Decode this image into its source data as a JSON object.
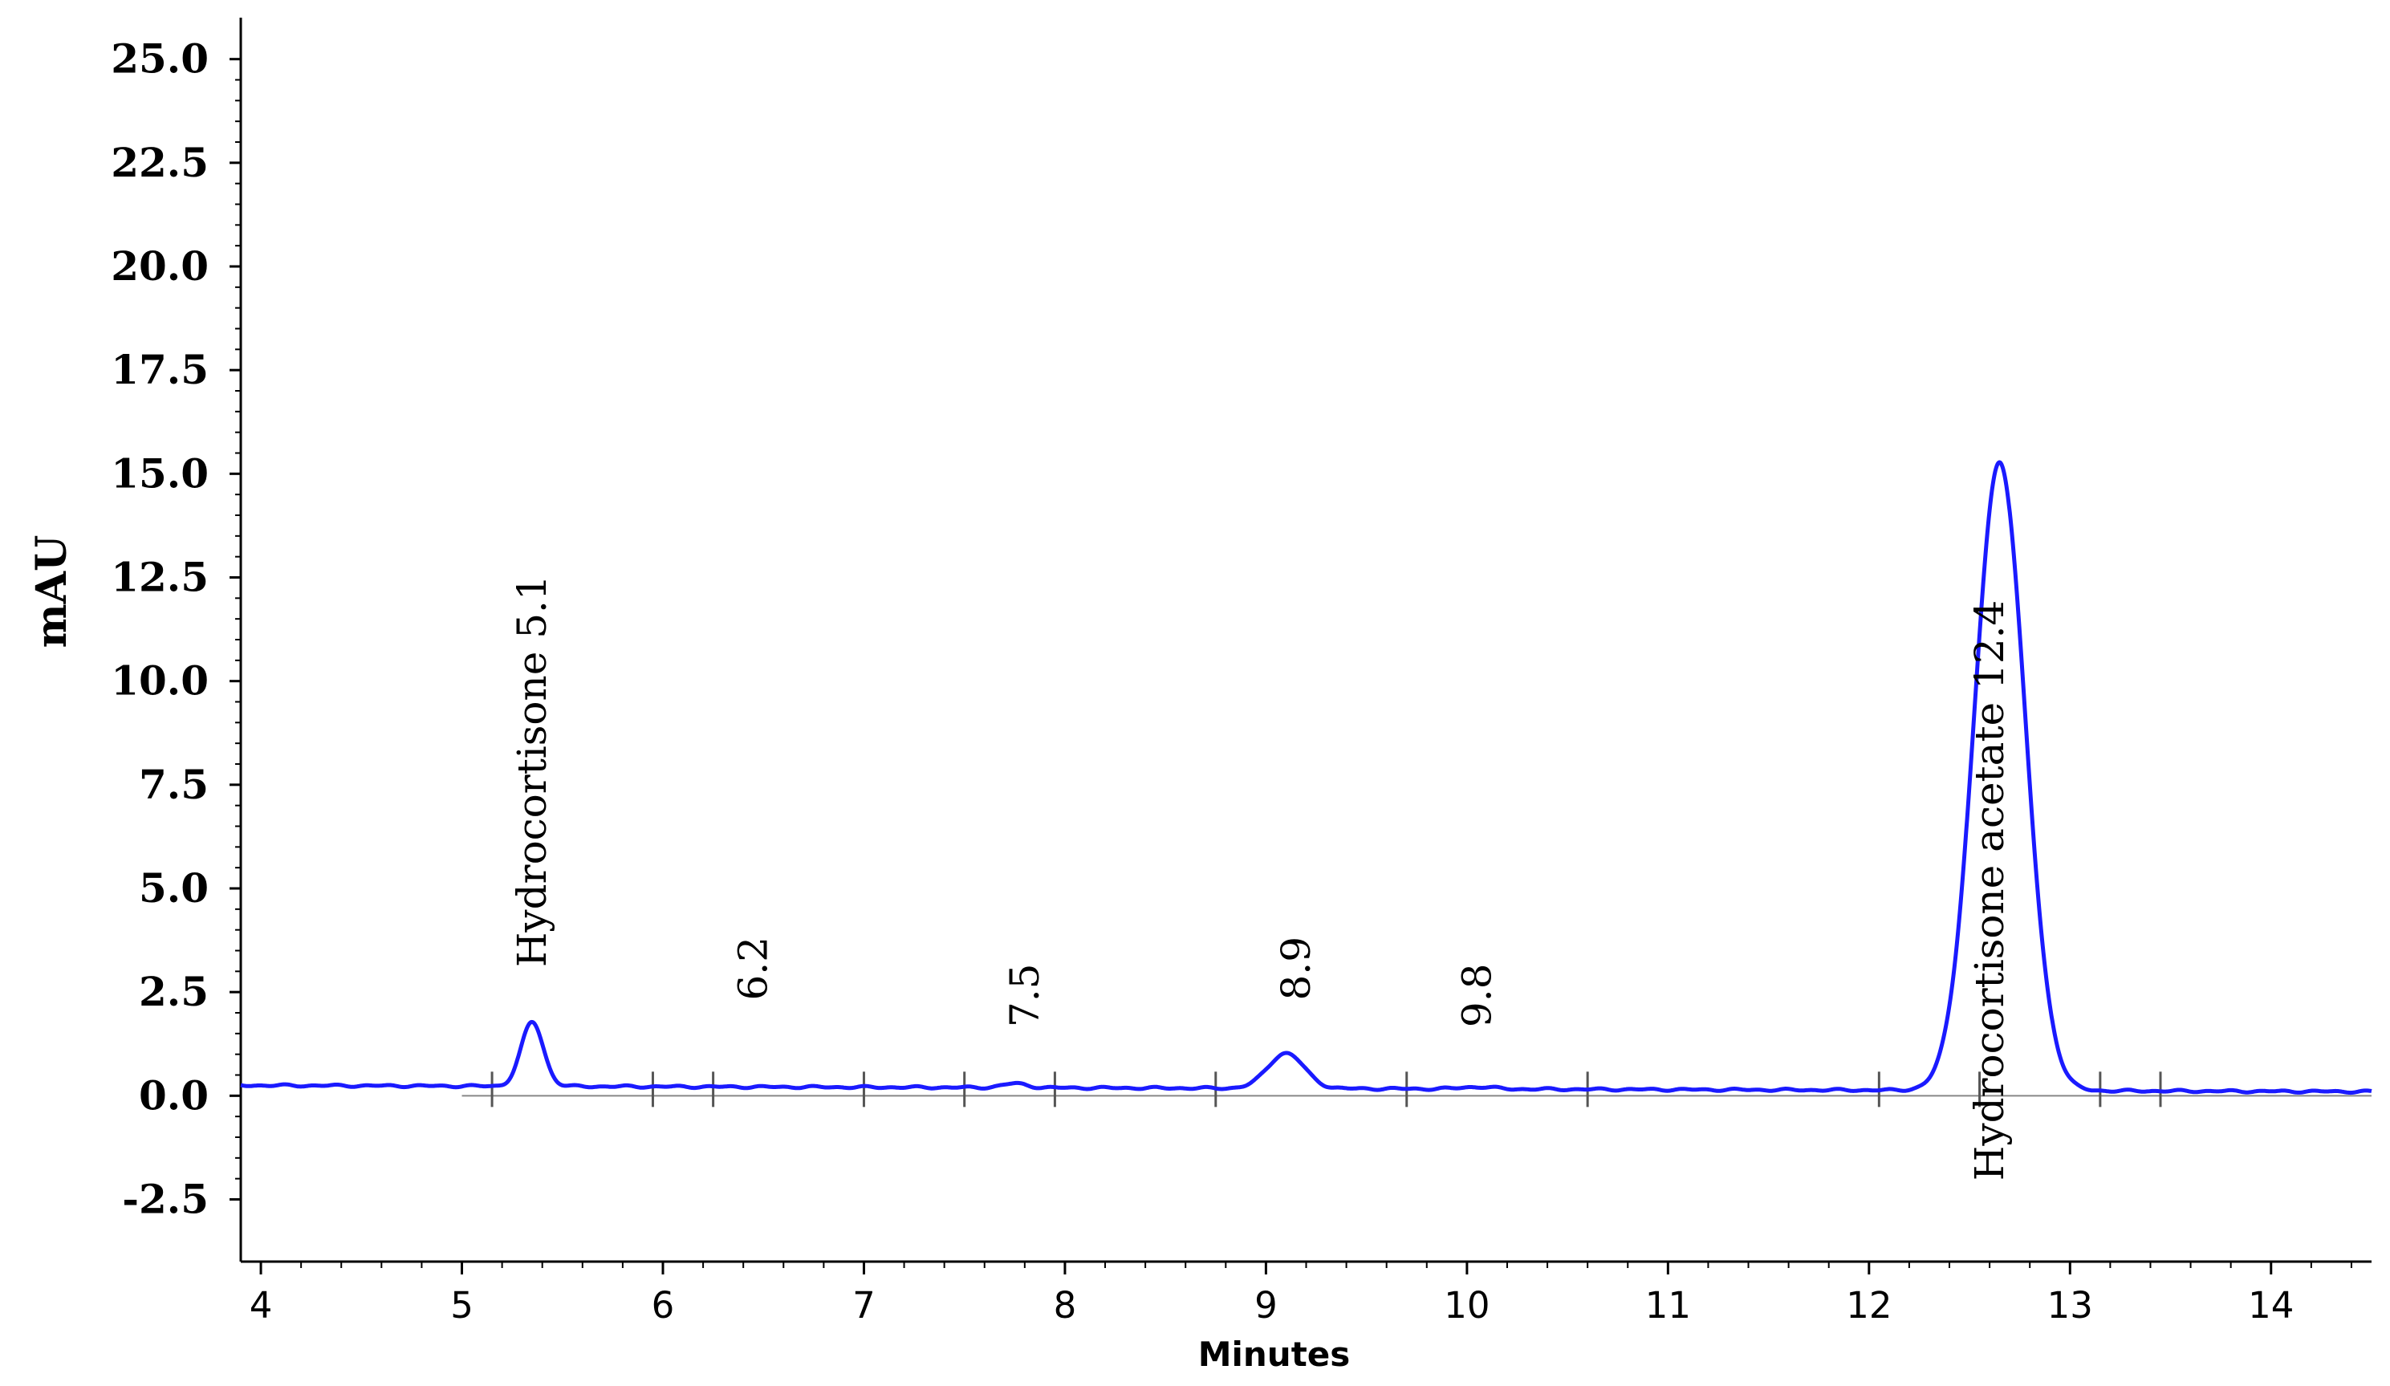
{
  "chart_data": {
    "type": "line",
    "title": "",
    "xlabel": "Minutes",
    "ylabel": "mAU",
    "xlim": [
      3.9,
      14.5
    ],
    "ylim": [
      -4.0,
      26.0
    ],
    "x_ticks": [
      4,
      5,
      6,
      7,
      8,
      9,
      10,
      11,
      12,
      13,
      14
    ],
    "x_tick_labels": [
      "4",
      "5",
      "6",
      "7",
      "8",
      "9",
      "10",
      "11",
      "12",
      "13",
      "14"
    ],
    "y_ticks": [
      -2.5,
      0.0,
      2.5,
      5.0,
      7.5,
      10.0,
      12.5,
      15.0,
      17.5,
      20.0,
      22.5,
      25.0
    ],
    "y_tick_labels": [
      "-2.5",
      "0.0",
      "2.5",
      "5.0",
      "7.5",
      "10.0",
      "12.5",
      "15.0",
      "17.5",
      "20.0",
      "22.5",
      "25.0"
    ],
    "series_color": "#1a1aff",
    "baseline": {
      "x0": 3.9,
      "y0": 0.25,
      "x1": 14.5,
      "y1": 0.1
    },
    "peaks": [
      {
        "rt": 5.35,
        "height": 1.55,
        "sigma": 0.055
      },
      {
        "rt": 7.75,
        "height": 0.1,
        "sigma": 0.06
      },
      {
        "rt": 9.1,
        "height": 0.85,
        "sigma": 0.09
      },
      {
        "rt": 10.05,
        "height": 0.05,
        "sigma": 0.08
      },
      {
        "rt": 12.65,
        "height": 15.15,
        "sigma": 0.125
      }
    ],
    "integration_markers": [
      5.15,
      5.95,
      6.25,
      7.0,
      7.5,
      7.95,
      8.75,
      9.7,
      10.6,
      12.05,
      12.55,
      13.15,
      13.45
    ],
    "annotations": [
      {
        "text": "Hydrocortisone 5.1",
        "x": 5.35,
        "y": 3.1
      },
      {
        "text": "6.2",
        "x": 6.45,
        "y": 2.3
      },
      {
        "text": "7.5",
        "x": 7.8,
        "y": 1.65
      },
      {
        "text": "8.9",
        "x": 9.15,
        "y": 2.3
      },
      {
        "text": "9.8",
        "x": 10.05,
        "y": 1.65
      },
      {
        "text": "Hydrocortisone acetate 12.4",
        "x": 12.6,
        "y": -2.05
      }
    ]
  }
}
